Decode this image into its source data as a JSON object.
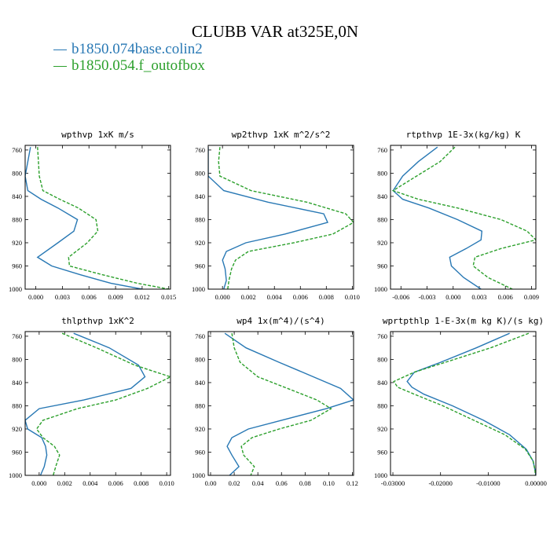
{
  "figure": {
    "title": "CLUBB VAR at325E,0N",
    "legend": [
      {
        "label": "b1850.074base.colin2",
        "color": "#2878b4"
      },
      {
        "label": "b1850.054.f_outofbox",
        "color": "#2ca02c"
      }
    ]
  },
  "chart_data": [
    {
      "type": "line",
      "title": "wpthvp  1xK m/s",
      "xlim": [
        -0.0012,
        0.0152
      ],
      "xticks": [
        0,
        0.003,
        0.006,
        0.009,
        0.012,
        0.015
      ],
      "xtick_labels": [
        "0.000",
        "0.003",
        "0.006",
        "0.009",
        "0.012",
        "0.015"
      ],
      "ylim": [
        1000,
        752
      ],
      "yticks": [
        760,
        800,
        840,
        880,
        920,
        960,
        1000
      ],
      "ytick_labels": [
        "760",
        "800",
        "840",
        "880",
        "920",
        "960",
        "1000"
      ],
      "y": [
        755,
        780,
        805,
        830,
        845,
        860,
        880,
        900,
        920,
        945,
        960,
        975,
        990,
        1000
      ],
      "series": [
        {
          "name": "b1850.074base.colin2",
          "color": "#2878b4",
          "dash": "solid",
          "values": [
            -0.0006,
            -0.0009,
            -0.0012,
            -0.0009,
            0.0006,
            0.0025,
            0.0047,
            0.0043,
            0.0025,
            0.0002,
            0.0018,
            0.005,
            0.0085,
            0.012
          ]
        },
        {
          "name": "b1850.054.f_outofbox",
          "color": "#2ca02c",
          "dash": "dashed",
          "values": [
            0.0002,
            0.0003,
            0.0004,
            0.0008,
            0.0027,
            0.0048,
            0.0068,
            0.007,
            0.0058,
            0.0037,
            0.0038,
            0.0075,
            0.0115,
            0.015
          ]
        }
      ]
    },
    {
      "type": "line",
      "title": "wp2thvp  1xK m^2/s^2",
      "xlim": [
        -0.0011,
        0.0101
      ],
      "xticks": [
        0,
        0.002,
        0.004,
        0.006,
        0.008,
        0.01
      ],
      "xtick_labels": [
        "0.000",
        "0.002",
        "0.004",
        "0.006",
        "0.008",
        "0.010"
      ],
      "ylim": [
        1000,
        752
      ],
      "yticks": [
        760,
        800,
        840,
        880,
        920,
        960,
        1000
      ],
      "ytick_labels": [
        "760",
        "800",
        "840",
        "880",
        "920",
        "960",
        "1000"
      ],
      "y": [
        755,
        780,
        805,
        830,
        850,
        870,
        885,
        905,
        920,
        935,
        950,
        965,
        985,
        1000
      ],
      "series": [
        {
          "name": "b1850.074base.colin2",
          "color": "#2878b4",
          "dash": "solid",
          "values": [
            -0.0011,
            -0.0011,
            -0.0011,
            0.0001,
            0.0035,
            0.0078,
            0.0081,
            0.0048,
            0.0018,
            0.0003,
            0.0,
            0.0002,
            0.0003,
            0.0001
          ]
        },
        {
          "name": "b1850.054.f_outofbox",
          "color": "#2ca02c",
          "dash": "dashed",
          "values": [
            -0.0002,
            -0.0003,
            -0.0002,
            0.0022,
            0.0065,
            0.0095,
            0.0101,
            0.0085,
            0.0055,
            0.002,
            0.001,
            0.0007,
            0.0005,
            0.0004
          ]
        }
      ]
    },
    {
      "type": "line",
      "title": "rtpthvp  1E-3x(kg/kg) K",
      "xlim": [
        -0.0072,
        0.0095
      ],
      "xticks": [
        -0.006,
        -0.003,
        0,
        0.003,
        0.006,
        0.009
      ],
      "xtick_labels": [
        "-0.006",
        "-0.003",
        "0.000",
        "0.003",
        "0.006",
        "0.009"
      ],
      "ylim": [
        1000,
        752
      ],
      "yticks": [
        760,
        800,
        840,
        880,
        920,
        960,
        1000
      ],
      "ytick_labels": [
        "760",
        "800",
        "840",
        "880",
        "920",
        "960",
        "1000"
      ],
      "y": [
        755,
        780,
        805,
        830,
        845,
        860,
        880,
        900,
        915,
        930,
        945,
        960,
        980,
        1000
      ],
      "series": [
        {
          "name": "b1850.074base.colin2",
          "color": "#2878b4",
          "dash": "solid",
          "values": [
            -0.0018,
            -0.004,
            -0.0058,
            -0.0069,
            -0.0058,
            -0.0028,
            0.0005,
            0.0033,
            0.0032,
            0.0015,
            -0.0004,
            -0.0002,
            0.0012,
            0.0032
          ]
        },
        {
          "name": "b1850.054.f_outofbox",
          "color": "#2ca02c",
          "dash": "dashed",
          "values": [
            0.0002,
            -0.0015,
            -0.0042,
            -0.0069,
            -0.004,
            0.0005,
            0.0055,
            0.0085,
            0.0095,
            0.0055,
            0.0025,
            0.0023,
            0.004,
            0.0068
          ]
        }
      ]
    },
    {
      "type": "line",
      "title": "thlpthvp  1xK^2",
      "xlim": [
        -0.0011,
        0.0103
      ],
      "xticks": [
        0,
        0.002,
        0.004,
        0.006,
        0.008,
        0.01
      ],
      "xtick_labels": [
        "0.000",
        "0.002",
        "0.004",
        "0.006",
        "0.008",
        "0.010"
      ],
      "ylim": [
        1000,
        752
      ],
      "yticks": [
        760,
        800,
        840,
        880,
        920,
        960,
        1000
      ],
      "ytick_labels": [
        "760",
        "800",
        "840",
        "880",
        "920",
        "960",
        "1000"
      ],
      "y": [
        755,
        780,
        810,
        830,
        850,
        870,
        885,
        905,
        920,
        935,
        950,
        965,
        985,
        1000
      ],
      "series": [
        {
          "name": "b1850.074base.colin2",
          "color": "#2878b4",
          "dash": "solid",
          "values": [
            0.0027,
            0.0055,
            0.0078,
            0.0083,
            0.0072,
            0.0035,
            0.0,
            -0.0011,
            -0.0009,
            0.0002,
            0.0005,
            0.0006,
            0.0004,
            0.0001
          ]
        },
        {
          "name": "b1850.054.f_outofbox",
          "color": "#2ca02c",
          "dash": "dashed",
          "values": [
            0.0018,
            0.0045,
            0.0075,
            0.0103,
            0.0085,
            0.006,
            0.003,
            0.0003,
            -0.0002,
            0.0003,
            0.0012,
            0.0016,
            0.0013,
            0.0011
          ]
        }
      ]
    },
    {
      "type": "line",
      "title": "wp4  1x(m^4)/(s^4)",
      "xlim": [
        -0.002,
        0.121
      ],
      "xticks": [
        0,
        0.02,
        0.04,
        0.06,
        0.08,
        0.1,
        0.12
      ],
      "xtick_labels": [
        "0.00",
        "0.02",
        "0.04",
        "0.06",
        "0.08",
        "0.10",
        "0.12"
      ],
      "ylim": [
        1000,
        752
      ],
      "yticks": [
        760,
        800,
        840,
        880,
        920,
        960,
        1000
      ],
      "ytick_labels": [
        "760",
        "800",
        "840",
        "880",
        "920",
        "960",
        "1000"
      ],
      "y": [
        755,
        780,
        805,
        830,
        850,
        870,
        885,
        905,
        920,
        935,
        950,
        965,
        985,
        1000
      ],
      "series": [
        {
          "name": "b1850.074base.colin2",
          "color": "#2878b4",
          "dash": "solid",
          "values": [
            0.012,
            0.03,
            0.058,
            0.087,
            0.11,
            0.121,
            0.098,
            0.06,
            0.032,
            0.018,
            0.014,
            0.018,
            0.024,
            0.016
          ]
        },
        {
          "name": "b1850.054.f_outofbox",
          "color": "#2ca02c",
          "dash": "dashed",
          "values": [
            0.018,
            0.02,
            0.025,
            0.04,
            0.065,
            0.09,
            0.102,
            0.085,
            0.058,
            0.035,
            0.026,
            0.028,
            0.037,
            0.034
          ]
        }
      ]
    },
    {
      "type": "line",
      "title": "wprtpthlp  1-E-3x(m kg K)/(s kg)",
      "xlim": [
        -0.0305,
        0.0
      ],
      "xticks": [
        -0.03,
        -0.02,
        -0.01,
        0
      ],
      "xtick_labels": [
        "-0.03000",
        "-0.02000",
        "-0.01000",
        "0.00000"
      ],
      "ylim": [
        1000,
        752
      ],
      "yticks": [
        760,
        800,
        840,
        880,
        920,
        960,
        1000
      ],
      "ytick_labels": [
        "760",
        "800",
        "840",
        "880",
        "920",
        "960",
        "1000"
      ],
      "y": [
        755,
        780,
        805,
        822,
        838,
        848,
        860,
        880,
        905,
        930,
        955,
        975,
        990,
        1000
      ],
      "series": [
        {
          "name": "b1850.074base.colin2",
          "color": "#2878b4",
          "dash": "solid",
          "values": [
            -0.0055,
            -0.0125,
            -0.02,
            -0.0255,
            -0.027,
            -0.026,
            -0.0235,
            -0.0175,
            -0.011,
            -0.0055,
            -0.002,
            -0.0006,
            -0.0002,
            0.0
          ]
        },
        {
          "name": "b1850.054.f_outofbox",
          "color": "#2ca02c",
          "dash": "dashed",
          "values": [
            -0.0015,
            -0.0095,
            -0.019,
            -0.0255,
            -0.0298,
            -0.029,
            -0.0255,
            -0.0195,
            -0.013,
            -0.0065,
            -0.0022,
            -0.0006,
            -0.0002,
            -0.0001
          ]
        }
      ]
    }
  ]
}
